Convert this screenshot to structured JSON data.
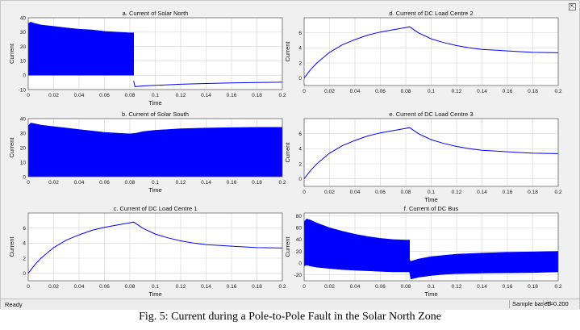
{
  "window": {
    "dock_icon": "undock-icon"
  },
  "status": {
    "left": "Ready",
    "mode": "Sample based",
    "time": "T=0.200"
  },
  "caption": "Fig. 5: Current during a Pole-to-Pole Fault in the Solar North Zone",
  "colors": {
    "trace": "#0000ff",
    "grid": "#d6d6d6",
    "axes_bg": "#ffffff",
    "window_bg": "#f0f0f0"
  },
  "chart_data": [
    {
      "type": "line",
      "title": "a. Current of Solar North",
      "xlabel": "Time",
      "ylabel": "Current",
      "xlim": [
        0,
        0.2
      ],
      "ylim": [
        -10,
        40
      ],
      "xticks": [
        "0",
        "0.02",
        "0.04",
        "0.06",
        "0.08",
        "0.1",
        "0.12",
        "0.14",
        "0.16",
        "0.18",
        "0.2"
      ],
      "yticks": [
        "-10",
        "0",
        "10",
        "20",
        "30",
        "40"
      ],
      "grid": true,
      "series": [
        {
          "style": "band",
          "x": [
            0,
            0.002,
            0.005,
            0.01,
            0.02,
            0.03,
            0.04,
            0.05,
            0.06,
            0.07,
            0.08,
            0.083
          ],
          "upper": [
            36,
            37,
            36,
            35,
            34,
            33,
            32,
            31.5,
            30.5,
            30,
            29.5,
            29.5
          ],
          "lower": [
            0,
            0,
            0,
            0,
            0,
            0,
            0,
            0,
            0,
            0,
            0,
            0
          ]
        },
        {
          "style": "line",
          "x": [
            0.083,
            0.084,
            0.09,
            0.1,
            0.11,
            0.12,
            0.14,
            0.16,
            0.18,
            0.2
          ],
          "y": [
            -4,
            -8,
            -7.5,
            -7,
            -6.7,
            -6.3,
            -5.8,
            -5.4,
            -5.1,
            -4.9
          ]
        }
      ]
    },
    {
      "type": "line",
      "title": "b. Current of Solar South",
      "xlabel": "Time",
      "ylabel": "Current",
      "xlim": [
        0,
        0.2
      ],
      "ylim": [
        0,
        40
      ],
      "xticks": [
        "0",
        "0.02",
        "0.04",
        "0.06",
        "0.08",
        "0.1",
        "0.12",
        "0.14",
        "0.16",
        "0.18",
        "0.2"
      ],
      "yticks": [
        "0",
        "10",
        "20",
        "30",
        "40"
      ],
      "grid": true,
      "series": [
        {
          "style": "band",
          "x": [
            0,
            0.002,
            0.005,
            0.01,
            0.02,
            0.03,
            0.04,
            0.05,
            0.06,
            0.07,
            0.08,
            0.085,
            0.09,
            0.1,
            0.11,
            0.12,
            0.14,
            0.16,
            0.18,
            0.2
          ],
          "upper": [
            35,
            37,
            36.5,
            35.5,
            34.5,
            33.5,
            32.5,
            31.5,
            30.5,
            30,
            29.5,
            30,
            31,
            32,
            32.5,
            33,
            33.5,
            33.8,
            34,
            34
          ],
          "lower": [
            0,
            0,
            0,
            0,
            0,
            0,
            0,
            0,
            0,
            0,
            0,
            0,
            0,
            0,
            0,
            0,
            0,
            0,
            0,
            0
          ]
        }
      ]
    },
    {
      "type": "line",
      "title": "c. Current of DC Load Centre 1",
      "xlabel": "Time",
      "ylabel": "Current",
      "xlim": [
        0,
        0.2
      ],
      "ylim": [
        -1,
        8
      ],
      "xticks": [
        "0",
        "0.02",
        "0.04",
        "0.06",
        "0.08",
        "0.1",
        "0.12",
        "0.14",
        "0.16",
        "0.18",
        "0.2"
      ],
      "yticks": [
        "0",
        "2",
        "4",
        "6"
      ],
      "grid": true,
      "series": [
        {
          "style": "line",
          "x": [
            0,
            0.005,
            0.01,
            0.02,
            0.03,
            0.04,
            0.05,
            0.06,
            0.07,
            0.08,
            0.083,
            0.09,
            0.1,
            0.11,
            0.12,
            0.13,
            0.14,
            0.15,
            0.16,
            0.18,
            0.2
          ],
          "y": [
            0,
            1.1,
            2.0,
            3.4,
            4.4,
            5.1,
            5.7,
            6.1,
            6.4,
            6.7,
            6.8,
            6.0,
            5.2,
            4.7,
            4.3,
            4.0,
            3.8,
            3.7,
            3.6,
            3.4,
            3.35
          ]
        }
      ]
    },
    {
      "type": "line",
      "title": "d. Current of DC Load Centre 2",
      "xlabel": "",
      "ylabel": "Current",
      "xlim": [
        0,
        0.2
      ],
      "ylim": [
        -1,
        8
      ],
      "xticks": [
        "0",
        "0.02",
        "0.04",
        "0.06",
        "0.08",
        "0.1",
        "0.12",
        "0.14",
        "0.16",
        "0.18",
        "0.2"
      ],
      "yticks": [
        "0",
        "2",
        "4",
        "6"
      ],
      "grid": true,
      "series": [
        {
          "style": "line",
          "x": [
            0,
            0.005,
            0.01,
            0.02,
            0.03,
            0.04,
            0.05,
            0.06,
            0.07,
            0.08,
            0.083,
            0.09,
            0.1,
            0.11,
            0.12,
            0.13,
            0.14,
            0.15,
            0.16,
            0.18,
            0.2
          ],
          "y": [
            0,
            1.1,
            2.0,
            3.4,
            4.4,
            5.1,
            5.7,
            6.1,
            6.4,
            6.7,
            6.8,
            6.0,
            5.2,
            4.7,
            4.3,
            4.0,
            3.8,
            3.7,
            3.6,
            3.4,
            3.35
          ]
        }
      ]
    },
    {
      "type": "line",
      "title": "e. Current of DC Load Centre 3",
      "xlabel": "Time",
      "ylabel": "Current",
      "xlim": [
        0,
        0.2
      ],
      "ylim": [
        -1,
        8
      ],
      "xticks": [
        "0",
        "0.02",
        "0.04",
        "0.06",
        "0.08",
        "0.1",
        "0.12",
        "0.14",
        "0.16",
        "0.18",
        "0.2"
      ],
      "yticks": [
        "0",
        "2",
        "4",
        "6"
      ],
      "grid": true,
      "series": [
        {
          "style": "line",
          "x": [
            0,
            0.005,
            0.01,
            0.02,
            0.03,
            0.04,
            0.05,
            0.06,
            0.07,
            0.08,
            0.083,
            0.09,
            0.1,
            0.11,
            0.12,
            0.13,
            0.14,
            0.15,
            0.16,
            0.18,
            0.2
          ],
          "y": [
            0,
            1.1,
            2.0,
            3.4,
            4.4,
            5.1,
            5.7,
            6.1,
            6.4,
            6.7,
            6.8,
            6.0,
            5.2,
            4.7,
            4.3,
            4.0,
            3.8,
            3.7,
            3.6,
            3.4,
            3.35
          ]
        }
      ]
    },
    {
      "type": "line",
      "title": "f. Current of DC Bus",
      "xlabel": "Time",
      "ylabel": "Current",
      "xlim": [
        0,
        0.2
      ],
      "ylim": [
        -30,
        85
      ],
      "xticks": [
        "0",
        "0.02",
        "0.04",
        "0.06",
        "0.08",
        "0.1",
        "0.12",
        "0.14",
        "0.16",
        "0.18",
        "0.2"
      ],
      "yticks": [
        "-20",
        "0",
        "20",
        "40",
        "60",
        "80"
      ],
      "grid": true,
      "series": [
        {
          "style": "band",
          "x": [
            0,
            0.002,
            0.005,
            0.01,
            0.02,
            0.03,
            0.04,
            0.05,
            0.06,
            0.07,
            0.08,
            0.083
          ],
          "upper": [
            70,
            75,
            73,
            68,
            60,
            54,
            49,
            45,
            42,
            40,
            39,
            39
          ],
          "lower": [
            -5,
            -3,
            -5,
            -7,
            -9,
            -11,
            -12,
            -13,
            -14,
            -15,
            -15,
            -15
          ]
        },
        {
          "style": "band",
          "x": [
            0.083,
            0.084,
            0.09,
            0.1,
            0.11,
            0.12,
            0.14,
            0.16,
            0.18,
            0.2
          ],
          "upper": [
            5,
            3,
            7,
            11,
            13,
            15,
            17,
            18.5,
            19,
            20
          ],
          "lower": [
            -15,
            -27,
            -24,
            -21,
            -19,
            -18,
            -17,
            -16.5,
            -16,
            -15
          ]
        }
      ]
    }
  ]
}
